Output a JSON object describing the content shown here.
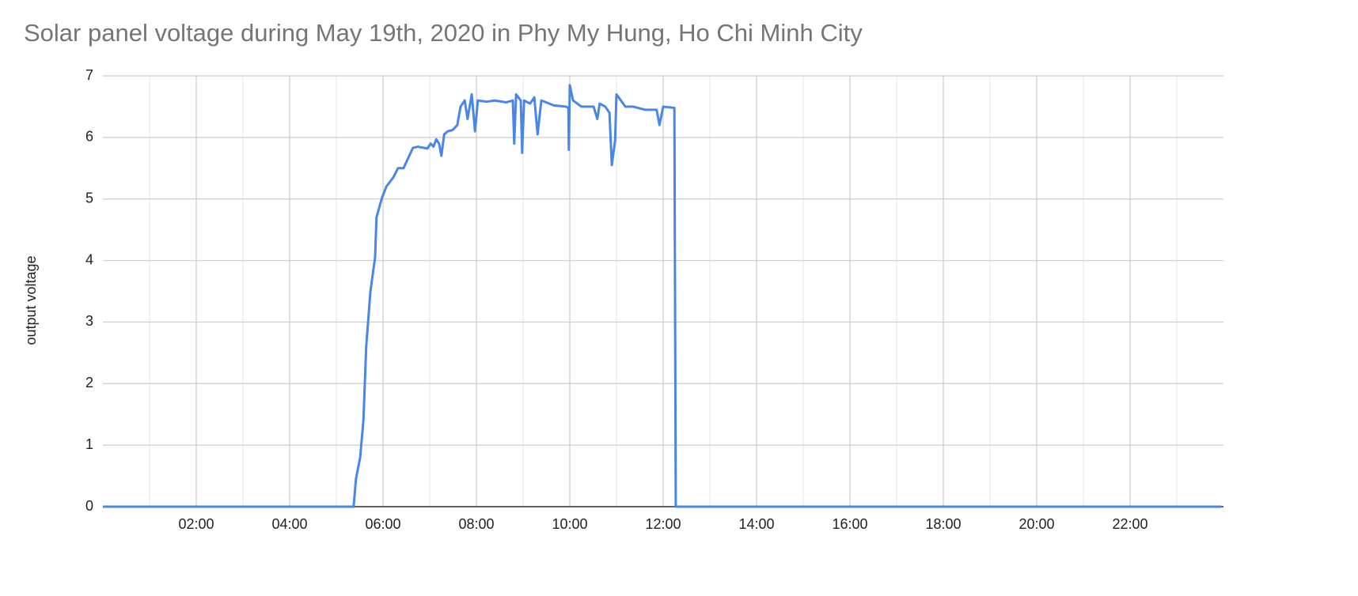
{
  "chart_data": {
    "type": "line",
    "title": "Solar panel voltage during May 19th, 2020 in Phy My Hung, Ho Chi Minh City",
    "y_label": "output voltage",
    "x": [
      0,
      5.37,
      5.42,
      5.51,
      5.58,
      5.64,
      5.73,
      5.83,
      5.86,
      5.97,
      6.07,
      6.22,
      6.32,
      6.44,
      6.53,
      6.64,
      6.75,
      6.95,
      7.02,
      7.08,
      7.14,
      7.2,
      7.25,
      7.31,
      7.39,
      7.49,
      7.59,
      7.66,
      7.75,
      7.81,
      7.9,
      7.97,
      8.03,
      8.22,
      8.39,
      8.64,
      8.78,
      8.81,
      8.85,
      8.95,
      8.98,
      9.02,
      9.15,
      9.24,
      9.31,
      9.39,
      9.66,
      9.92,
      9.97,
      9.98,
      10.0,
      10.07,
      10.25,
      10.51,
      10.59,
      10.64,
      10.76,
      10.85,
      10.9,
      10.97,
      11.0,
      11.19,
      11.36,
      11.61,
      11.86,
      11.92,
      12.0,
      12.24,
      12.27,
      23.95
    ],
    "values": [
      0,
      0,
      0.45,
      0.8,
      1.4,
      2.6,
      3.5,
      4.05,
      4.7,
      5.0,
      5.2,
      5.35,
      5.5,
      5.5,
      5.65,
      5.83,
      5.85,
      5.82,
      5.9,
      5.85,
      5.97,
      5.9,
      5.7,
      6.05,
      6.1,
      6.12,
      6.2,
      6.5,
      6.6,
      6.3,
      6.7,
      6.1,
      6.6,
      6.58,
      6.6,
      6.57,
      6.6,
      5.9,
      6.7,
      6.6,
      5.75,
      6.6,
      6.55,
      6.65,
      6.05,
      6.6,
      6.52,
      6.5,
      6.48,
      5.8,
      6.85,
      6.6,
      6.5,
      6.5,
      6.3,
      6.55,
      6.5,
      6.4,
      5.55,
      5.95,
      6.7,
      6.5,
      6.5,
      6.45,
      6.45,
      6.2,
      6.5,
      6.48,
      0,
      0
    ],
    "color": "#4a86e8",
    "xlim": [
      0,
      24
    ],
    "ylim": [
      0,
      7
    ],
    "xticks": [
      {
        "value": 2,
        "label": "02:00"
      },
      {
        "value": 4,
        "label": "04:00"
      },
      {
        "value": 6,
        "label": "06:00"
      },
      {
        "value": 8,
        "label": "08:00"
      },
      {
        "value": 10,
        "label": "10:00"
      },
      {
        "value": 12,
        "label": "12:00"
      },
      {
        "value": 14,
        "label": "14:00"
      },
      {
        "value": 16,
        "label": "16:00"
      },
      {
        "value": 18,
        "label": "18:00"
      },
      {
        "value": 20,
        "label": "20:00"
      },
      {
        "value": 22,
        "label": "22:00"
      }
    ],
    "xgrid_minor": [
      1,
      3,
      5,
      7,
      9,
      11,
      13,
      15,
      17,
      19,
      21,
      23
    ],
    "yticks": [
      0,
      1,
      2,
      3,
      4,
      5,
      6,
      7
    ],
    "grid": true
  }
}
